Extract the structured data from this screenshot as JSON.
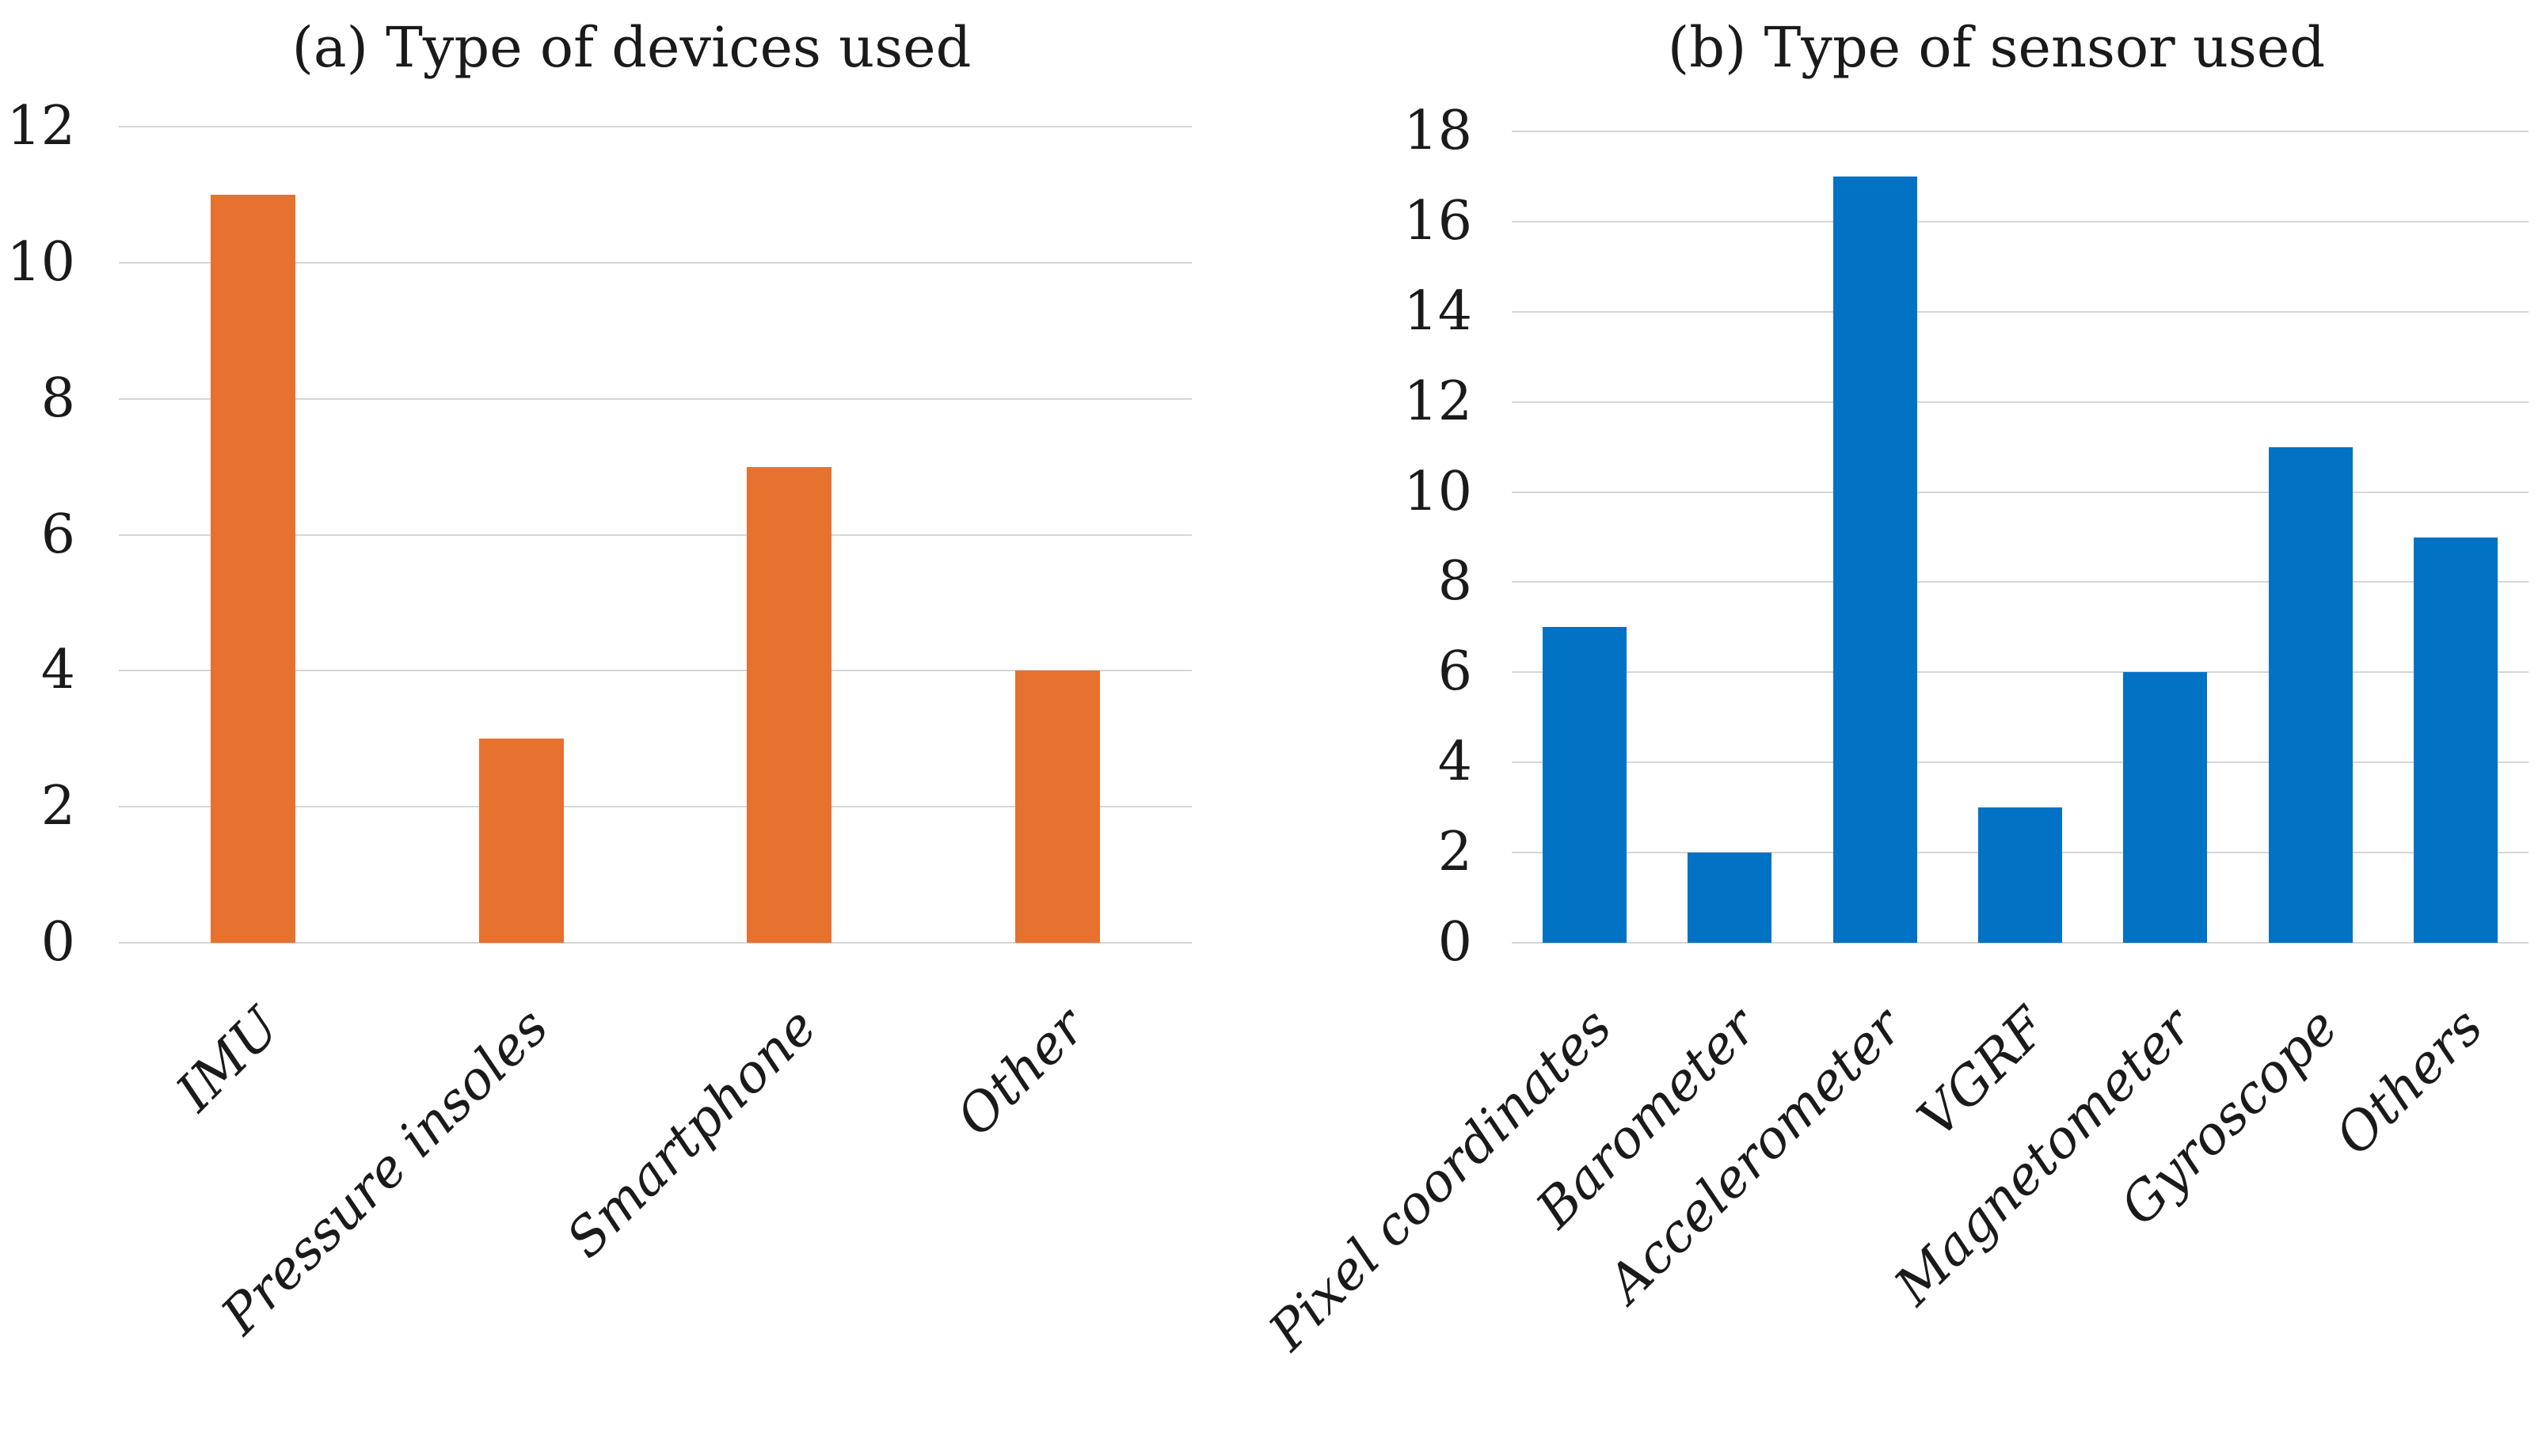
{
  "figure": {
    "description": "Two side-by-side vertical bar charts in a LaTeX-style figure",
    "background": "#FFFFFF"
  },
  "colors": {
    "grid": "#D6D6D6",
    "text": "#1A1A1A",
    "device_bar_orange": "#E7722F",
    "sensor_bar_blue": "#0272C4"
  },
  "chart_data": [
    {
      "type": "bar",
      "title": "(a) Type of devices used",
      "categories": [
        "IMU",
        "Pressure insoles",
        "Smartphone",
        "Other"
      ],
      "values": [
        11,
        3,
        7,
        4
      ],
      "bar_color": "#E7722F",
      "xlabel": "",
      "ylabel": "",
      "ylim": [
        0,
        12
      ],
      "yticks": [
        0,
        2,
        4,
        6,
        8,
        10,
        12
      ],
      "grid": "horizontal",
      "legend": "none",
      "tick_label_style": "italic, rotated 45 degrees"
    },
    {
      "type": "bar",
      "title": "(b) Type of sensor used",
      "categories": [
        "Pixel coordinates",
        "Barometer",
        "Accelerometer",
        "VGRF",
        "Magnetometer",
        "Gyroscope",
        "Others"
      ],
      "values": [
        7,
        2,
        17,
        3,
        6,
        11,
        9
      ],
      "bar_color": "#0272C4",
      "xlabel": "",
      "ylabel": "",
      "ylim": [
        0,
        18
      ],
      "yticks": [
        0,
        2,
        4,
        6,
        8,
        10,
        12,
        14,
        16,
        18
      ],
      "grid": "horizontal",
      "legend": "none",
      "tick_label_style": "italic, rotated 45 degrees"
    }
  ]
}
